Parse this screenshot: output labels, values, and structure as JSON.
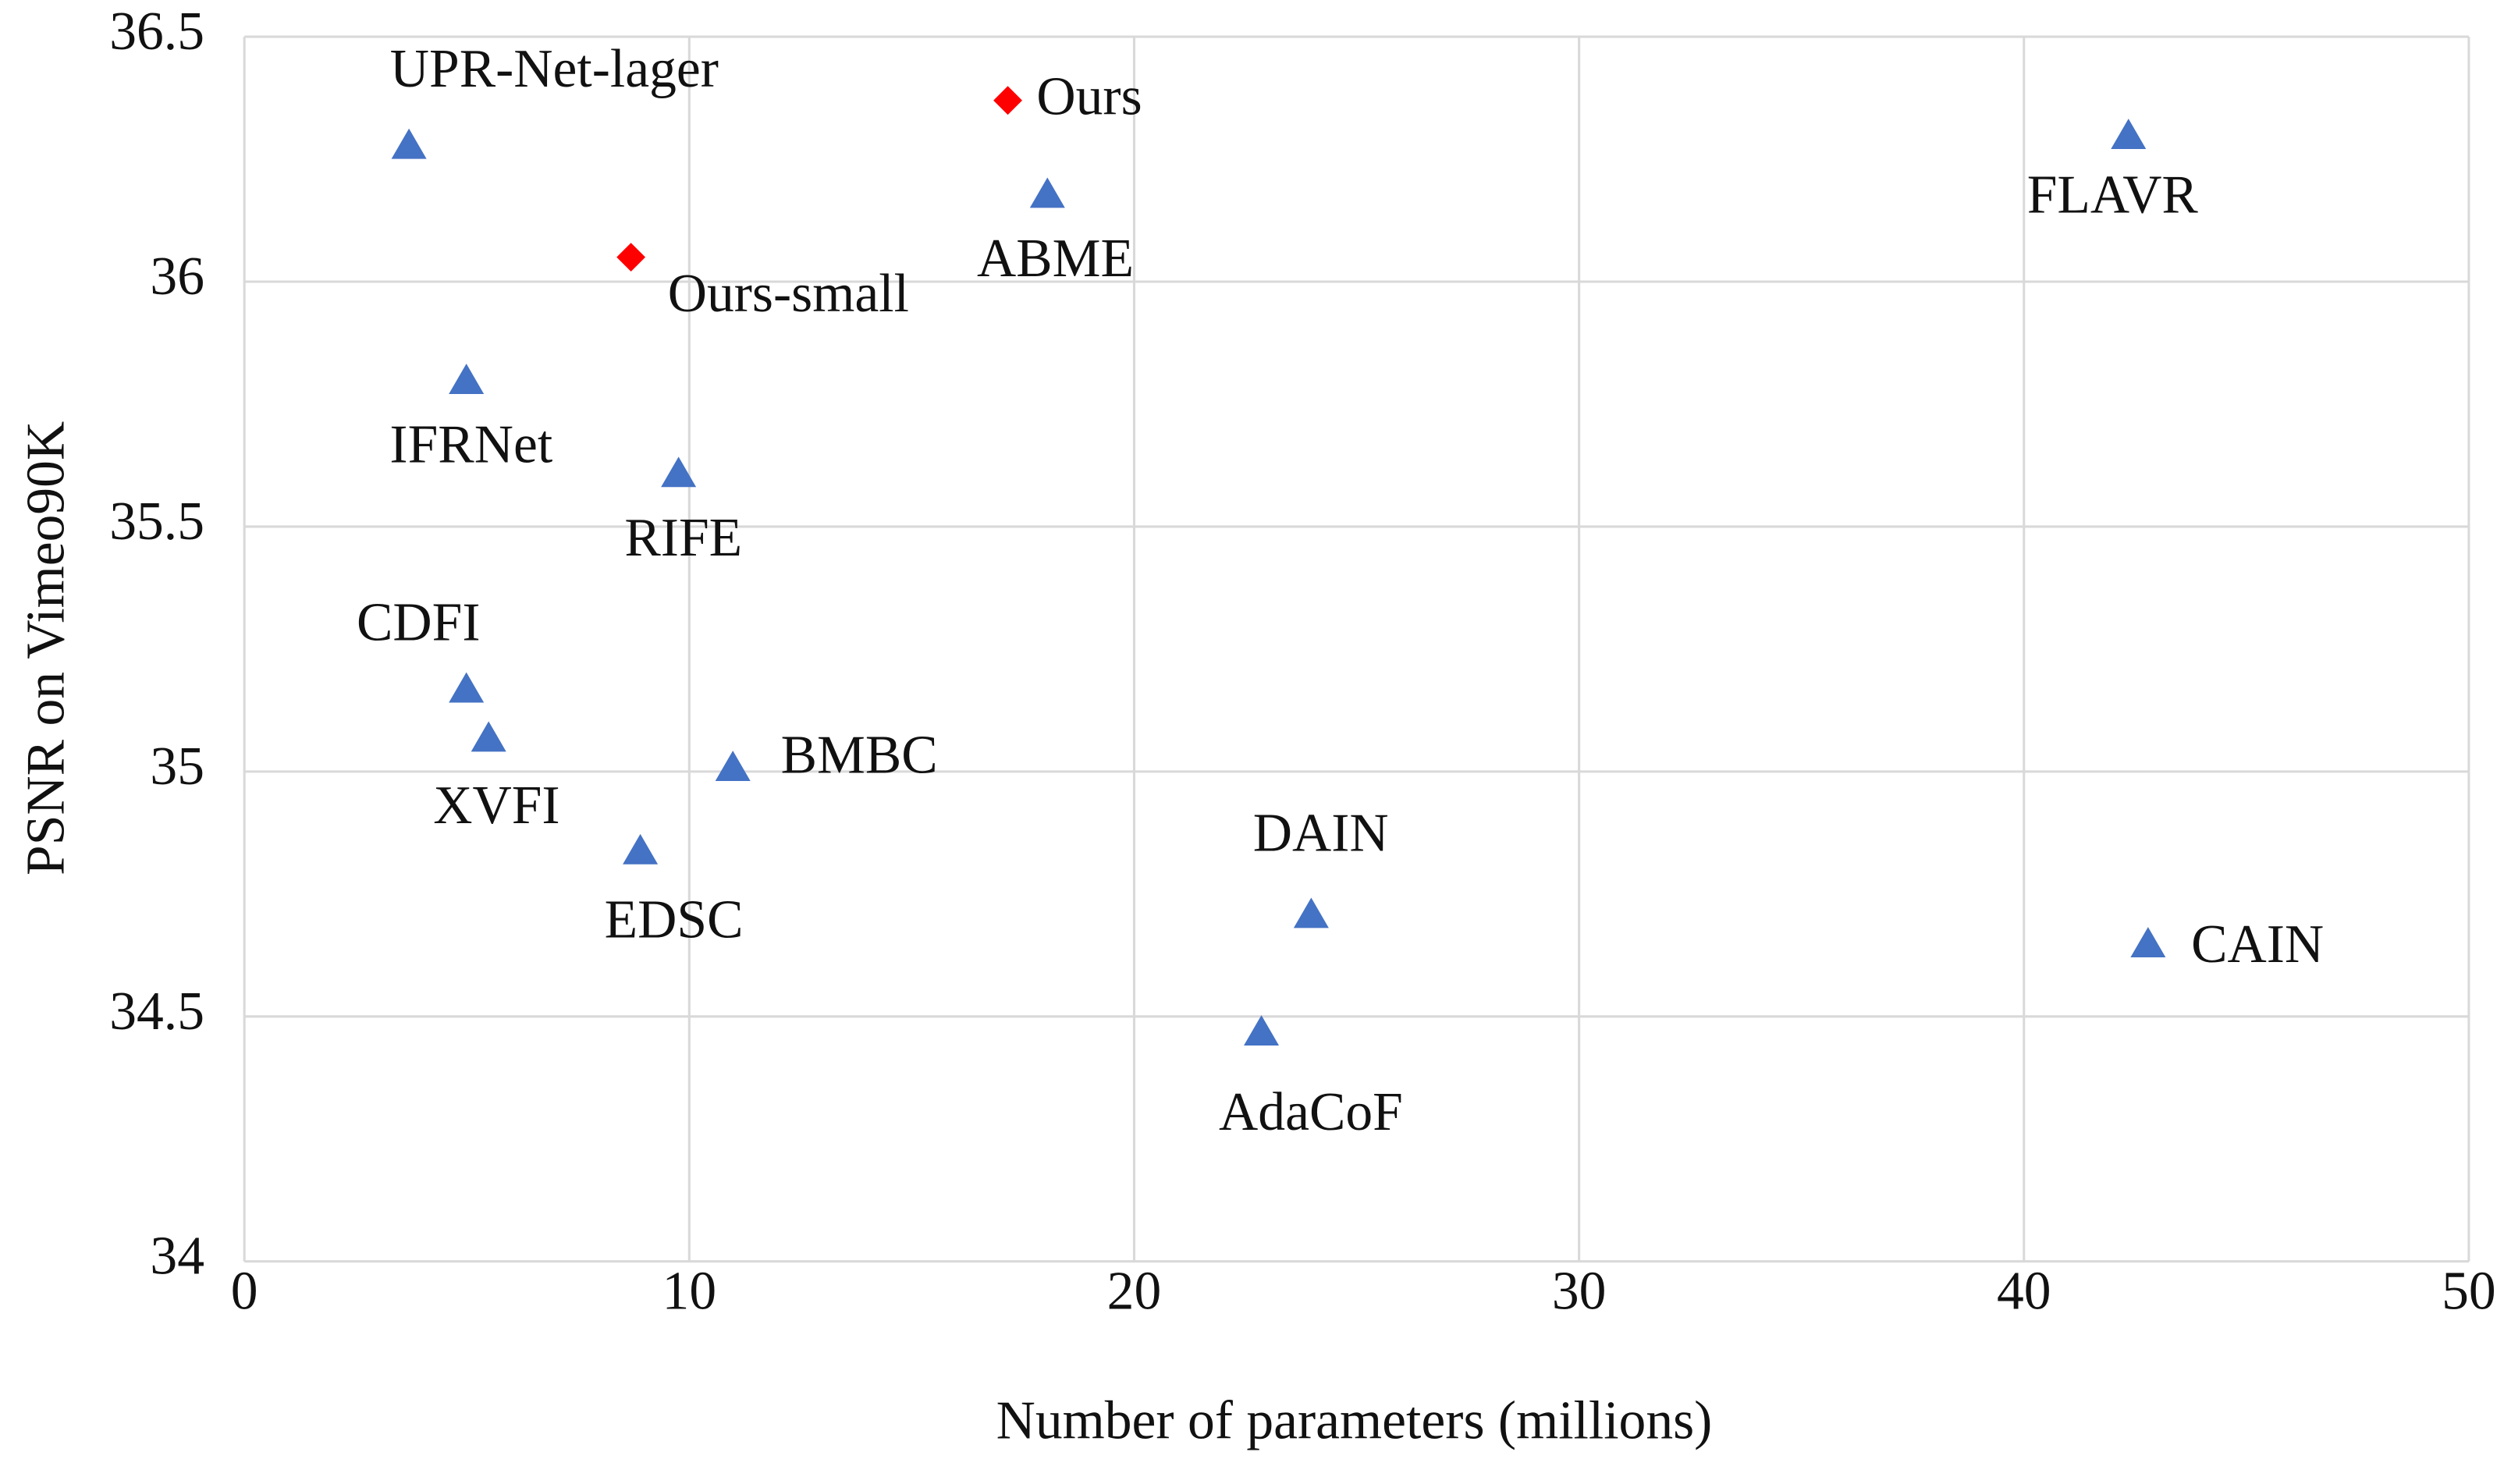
{
  "chart_data": {
    "type": "scatter",
    "xlabel": "Number of parameters (millions)",
    "ylabel": "PSNR on  Vimeo90K",
    "xlim": [
      0,
      50
    ],
    "xticks": [
      0,
      10,
      20,
      30,
      40,
      50
    ],
    "ylim": [
      34,
      36.5
    ],
    "yticks": [
      34,
      34.5,
      35,
      35.5,
      36,
      36.5
    ],
    "grid": true,
    "series": [
      {
        "marker": "triangle",
        "color": "#4472c4",
        "labels": [
          "UPR-Net-lager",
          "ABME",
          "FLAVR",
          "IFRNet",
          "RIFE",
          "CDFI",
          "XVFI",
          "BMBC",
          "EDSC",
          "DAIN",
          "AdaCoF",
          "CAIN"
        ],
        "x": [
          3.7,
          18.05,
          42.35,
          4.99,
          9.76,
          4.99,
          5.49,
          10.98,
          8.9,
          23.98,
          22.86,
          42.79
        ],
        "values": [
          36.28,
          36.18,
          36.3,
          35.8,
          35.61,
          35.17,
          35.07,
          35.01,
          34.84,
          34.71,
          34.47,
          34.65
        ]
      },
      {
        "marker": "diamond",
        "color": "#ff0000",
        "labels": [
          "Ours",
          "Ours-small"
        ],
        "x": [
          17.16,
          8.69
        ],
        "values": [
          36.37,
          36.05
        ]
      }
    ]
  }
}
